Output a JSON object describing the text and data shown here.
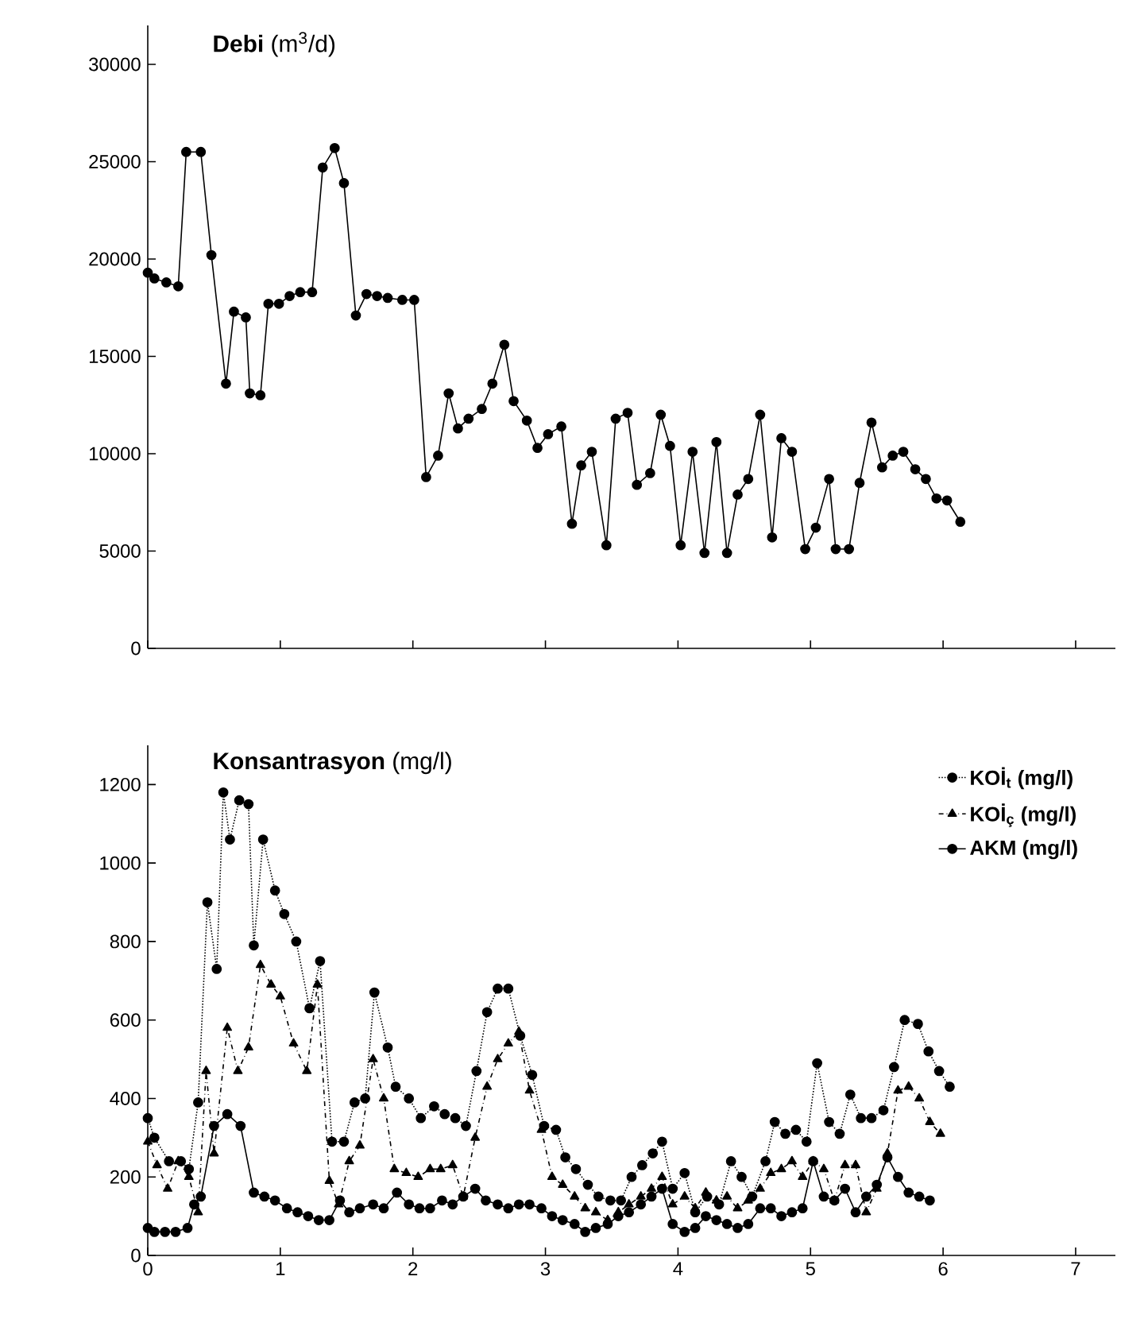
{
  "chart_data": [
    {
      "type": "line",
      "title": "**Debi** (m$^{3}$/d)",
      "marker": "circle",
      "color": "#000000",
      "tick_labels": "y",
      "xlim": [
        0,
        7.3
      ],
      "xticks": [
        0,
        1,
        2,
        3,
        4,
        5,
        6,
        7
      ],
      "ylim": [
        0,
        32000
      ],
      "yticks": [
        0,
        5000,
        10000,
        15000,
        20000,
        25000,
        30000
      ],
      "x": [
        0.0,
        0.05,
        0.14,
        0.23,
        0.29,
        0.4,
        0.48,
        0.59,
        0.65,
        0.74,
        0.77,
        0.85,
        0.91,
        0.99,
        1.07,
        1.15,
        1.24,
        1.32,
        1.41,
        1.48,
        1.57,
        1.65,
        1.73,
        1.81,
        1.92,
        2.01,
        2.1,
        2.19,
        2.27,
        2.34,
        2.42,
        2.52,
        2.6,
        2.69,
        2.76,
        2.86,
        2.94,
        3.02,
        3.12,
        3.2,
        3.27,
        3.35,
        3.46,
        3.53,
        3.62,
        3.69,
        3.79,
        3.87,
        3.94,
        4.02,
        4.11,
        4.2,
        4.29,
        4.37,
        4.45,
        4.53,
        4.62,
        4.71,
        4.78,
        4.86,
        4.96,
        5.04,
        5.14,
        5.19,
        5.29,
        5.37,
        5.46,
        5.54,
        5.62,
        5.7,
        5.79,
        5.87,
        5.95,
        6.03,
        6.13
      ],
      "values": [
        19300,
        19000,
        18800,
        18600,
        25500,
        25500,
        20200,
        13600,
        17300,
        17000,
        13100,
        13000,
        17700,
        17700,
        18100,
        18300,
        18300,
        24700,
        25700,
        23900,
        17100,
        18200,
        18100,
        18000,
        17900,
        17900,
        8800,
        9900,
        13100,
        11300,
        11800,
        12300,
        13600,
        15600,
        12700,
        11700,
        10300,
        11000,
        11400,
        6400,
        9400,
        10100,
        5300,
        11800,
        12100,
        8400,
        9000,
        12000,
        10400,
        5300,
        10100,
        4900,
        10600,
        4900,
        7900,
        8700,
        12000,
        5700,
        10800,
        10100,
        5100,
        6200,
        8700,
        5100,
        5100,
        8500,
        11600,
        9300,
        9900,
        10100,
        9200,
        8700,
        7700,
        7600,
        6500
      ]
    },
    {
      "type": "line",
      "title": "**Konsantrasyon** (mg/l)",
      "legend": "top right",
      "xlim": [
        0,
        7.3
      ],
      "xticks": [
        0,
        1,
        2,
        3,
        4,
        5,
        6,
        7
      ],
      "ylim": [
        0,
        1300
      ],
      "yticks": [
        0,
        200,
        400,
        600,
        800,
        1000,
        1200
      ],
      "series": [
        {
          "name": "KOİ$_{t}$ (mg/l)",
          "color": "#000000",
          "marker": "circle",
          "line_style": "dotted",
          "x": [
            0,
            0.05,
            0.16,
            0.25,
            0.31,
            0.38,
            0.45,
            0.52,
            0.57,
            0.62,
            0.69,
            0.76,
            0.8,
            0.87,
            0.96,
            1.03,
            1.12,
            1.22,
            1.3,
            1.39,
            1.48,
            1.56,
            1.64,
            1.71,
            1.81,
            1.87,
            1.97,
            2.06,
            2.16,
            2.24,
            2.32,
            2.4,
            2.48,
            2.56,
            2.64,
            2.72,
            2.81,
            2.9,
            2.99,
            3.08,
            3.15,
            3.23,
            3.32,
            3.4,
            3.49,
            3.57,
            3.65,
            3.73,
            3.81,
            3.88,
            3.96,
            4.05,
            4.13,
            4.22,
            4.31,
            4.4,
            4.48,
            4.56,
            4.66,
            4.73,
            4.81,
            4.89,
            4.97,
            5.05,
            5.14,
            5.22,
            5.3,
            5.38,
            5.46,
            5.55,
            5.63,
            5.71,
            5.81,
            5.89,
            5.97,
            6.05
          ],
          "values": [
            350,
            300,
            240,
            240,
            220,
            390,
            900,
            730,
            1180,
            1060,
            1160,
            1150,
            790,
            1060,
            930,
            870,
            800,
            630,
            750,
            290,
            290,
            390,
            400,
            670,
            530,
            430,
            400,
            350,
            380,
            360,
            350,
            330,
            470,
            620,
            680,
            680,
            560,
            460,
            330,
            320,
            250,
            220,
            180,
            150,
            140,
            140,
            200,
            230,
            260,
            290,
            170,
            210,
            110,
            150,
            130,
            240,
            200,
            150,
            240,
            340,
            310,
            320,
            290,
            490,
            340,
            310,
            410,
            350,
            350,
            370,
            480,
            600,
            590,
            520,
            470,
            430
          ]
        },
        {
          "name": "KOİ$_{ç}$ (mg/l)",
          "color": "#000000",
          "marker": "triangle",
          "line_style": "dashed",
          "x": [
            0,
            0.07,
            0.15,
            0.23,
            0.31,
            0.38,
            0.44,
            0.5,
            0.6,
            0.68,
            0.76,
            0.85,
            0.93,
            1.0,
            1.1,
            1.2,
            1.28,
            1.37,
            1.44,
            1.52,
            1.6,
            1.7,
            1.78,
            1.86,
            1.95,
            2.04,
            2.13,
            2.21,
            2.3,
            2.38,
            2.47,
            2.56,
            2.64,
            2.72,
            2.8,
            2.88,
            2.97,
            3.05,
            3.13,
            3.22,
            3.3,
            3.38,
            3.47,
            3.55,
            3.63,
            3.72,
            3.8,
            3.88,
            3.96,
            4.05,
            4.13,
            4.21,
            4.29,
            4.37,
            4.45,
            4.53,
            4.62,
            4.7,
            4.78,
            4.86,
            4.94,
            5.02,
            5.1,
            5.18,
            5.26,
            5.34,
            5.42,
            5.5,
            5.58,
            5.66,
            5.74,
            5.82,
            5.9,
            5.98
          ],
          "values": [
            290,
            230,
            170,
            240,
            200,
            110,
            470,
            260,
            580,
            470,
            530,
            740,
            690,
            660,
            540,
            470,
            690,
            190,
            130,
            240,
            280,
            500,
            400,
            220,
            210,
            200,
            220,
            220,
            230,
            150,
            300,
            430,
            500,
            540,
            570,
            420,
            320,
            200,
            180,
            150,
            120,
            110,
            90,
            110,
            130,
            150,
            170,
            200,
            130,
            150,
            120,
            160,
            140,
            150,
            120,
            140,
            170,
            210,
            220,
            240,
            200,
            240,
            220,
            140,
            230,
            230,
            110,
            170,
            260,
            420,
            430,
            400,
            340,
            310
          ]
        },
        {
          "name": "AKM (mg/l)",
          "color": "#000000",
          "marker": "circle",
          "line_style": "solid",
          "x": [
            0,
            0.05,
            0.13,
            0.21,
            0.3,
            0.35,
            0.4,
            0.5,
            0.6,
            0.7,
            0.8,
            0.88,
            0.96,
            1.05,
            1.13,
            1.21,
            1.29,
            1.37,
            1.45,
            1.52,
            1.6,
            1.7,
            1.78,
            1.88,
            1.97,
            2.05,
            2.13,
            2.22,
            2.3,
            2.38,
            2.47,
            2.55,
            2.64,
            2.72,
            2.8,
            2.88,
            2.97,
            3.05,
            3.13,
            3.22,
            3.3,
            3.38,
            3.47,
            3.55,
            3.63,
            3.72,
            3.8,
            3.88,
            3.96,
            4.05,
            4.13,
            4.21,
            4.29,
            4.37,
            4.45,
            4.53,
            4.62,
            4.7,
            4.78,
            4.86,
            4.94,
            5.02,
            5.1,
            5.18,
            5.26,
            5.34,
            5.42,
            5.5,
            5.58,
            5.66,
            5.74,
            5.82,
            5.9
          ],
          "values": [
            70,
            60,
            60,
            60,
            70,
            130,
            150,
            330,
            360,
            330,
            160,
            150,
            140,
            120,
            110,
            100,
            90,
            90,
            140,
            110,
            120,
            130,
            120,
            160,
            130,
            120,
            120,
            140,
            130,
            150,
            170,
            140,
            130,
            120,
            130,
            130,
            120,
            100,
            90,
            80,
            60,
            70,
            80,
            100,
            110,
            130,
            150,
            170,
            80,
            60,
            70,
            100,
            90,
            80,
            70,
            80,
            120,
            120,
            100,
            110,
            120,
            240,
            150,
            140,
            170,
            110,
            150,
            180,
            250,
            200,
            160,
            150,
            140
          ]
        }
      ]
    }
  ]
}
